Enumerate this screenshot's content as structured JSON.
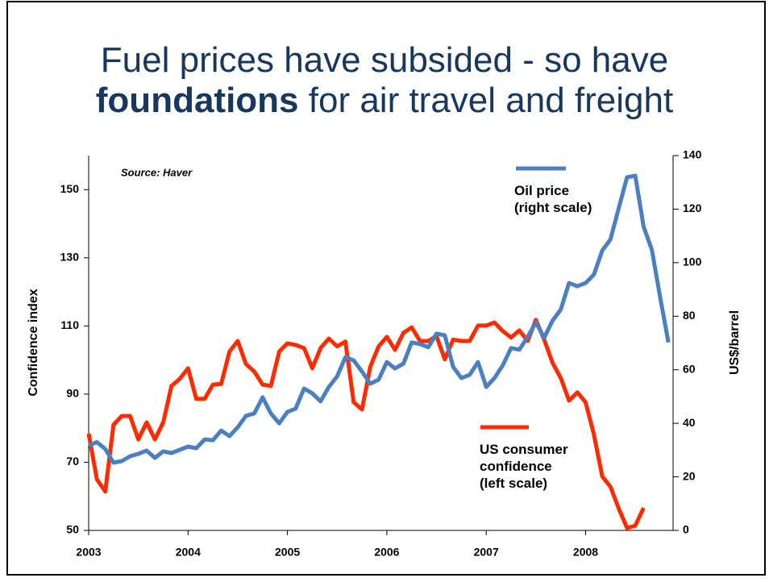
{
  "chart_data": {
    "type": "line",
    "title": {
      "line1": "Fuel prices have subsided - so have",
      "bold": "foundations",
      "rest": "for air travel and freight"
    },
    "source": "Source: Haver",
    "ylabel": "Confidence index",
    "y2label": "US$/barrel",
    "xlim": [
      2003,
      2008.88
    ],
    "xticks": [
      2003,
      2004,
      2005,
      2006,
      2007,
      2008
    ],
    "ylim": [
      50,
      160
    ],
    "yticks": [
      50,
      70,
      90,
      110,
      130,
      150
    ],
    "y2lim": [
      0,
      140
    ],
    "y2ticks": [
      0,
      20,
      40,
      60,
      80,
      100,
      120,
      140
    ],
    "x": [
      2003,
      2003.083,
      2003.167,
      2003.25,
      2003.333,
      2003.417,
      2003.5,
      2003.583,
      2003.667,
      2003.75,
      2003.833,
      2003.917,
      2004,
      2004.083,
      2004.167,
      2004.25,
      2004.333,
      2004.417,
      2004.5,
      2004.583,
      2004.667,
      2004.75,
      2004.833,
      2004.917,
      2005,
      2005.083,
      2005.167,
      2005.25,
      2005.333,
      2005.417,
      2005.5,
      2005.583,
      2005.667,
      2005.75,
      2005.833,
      2005.917,
      2006,
      2006.083,
      2006.167,
      2006.25,
      2006.333,
      2006.417,
      2006.5,
      2006.583,
      2006.667,
      2006.75,
      2006.833,
      2006.917,
      2007,
      2007.083,
      2007.167,
      2007.25,
      2007.333,
      2007.417,
      2007.5,
      2007.583,
      2007.667,
      2007.75,
      2007.833,
      2007.917,
      2008,
      2008.083,
      2008.167,
      2008.25,
      2008.333,
      2008.417,
      2008.5,
      2008.583,
      2008.667,
      2008.75,
      2008.833
    ],
    "series": [
      {
        "name": "US consumer confidence",
        "note": "(left scale)",
        "color": "#ff2a00",
        "axis": "y",
        "values": [
          78.4,
          65,
          61.4,
          81,
          83.6,
          83.6,
          76.7,
          81.7,
          76.7,
          81.7,
          92.4,
          94.5,
          97.6,
          88.6,
          88.6,
          92.8,
          93,
          102.5,
          105.6,
          98.8,
          96.6,
          92.8,
          92.4,
          102.5,
          104.9,
          104.4,
          103.5,
          97.6,
          103.5,
          106.3,
          104,
          105.4,
          87.6,
          85.5,
          98,
          104,
          106.8,
          103,
          108,
          109.6,
          105.6,
          105.6,
          107,
          100.2,
          106,
          105.6,
          105.6,
          110.1,
          110.1,
          111,
          108.5,
          106.6,
          108.7,
          105.6,
          111.8,
          106,
          99.2,
          94.7,
          88.1,
          90.5,
          87.6,
          78.2,
          65.9,
          62.8,
          56.4,
          50.7,
          51.4,
          56.6,
          null,
          null,
          null
        ]
      },
      {
        "name": "Oil price",
        "note": "(right scale)",
        "color": "#4a7fc1",
        "axis": "y2",
        "values": [
          31.6,
          33,
          30.4,
          25.3,
          25.9,
          27.7,
          28.6,
          29.8,
          27.1,
          29.5,
          28.9,
          30.1,
          31.3,
          30.7,
          34,
          33.7,
          37.3,
          35.2,
          38.5,
          42.8,
          43.7,
          49.7,
          43.7,
          40,
          44.3,
          45.5,
          53,
          51.2,
          48.2,
          53.6,
          57.5,
          64.7,
          63.5,
          59.3,
          54.8,
          56.3,
          62.9,
          60.5,
          62.3,
          70.2,
          69.6,
          68.4,
          73.5,
          72.9,
          61.1,
          56.9,
          58.1,
          62.9,
          53.6,
          56.9,
          61.7,
          68.1,
          67.5,
          72.3,
          77.7,
          72,
          78.3,
          82.5,
          92.4,
          91.2,
          92.4,
          95.5,
          104.5,
          108.7,
          120.4,
          131.9,
          132.5,
          113.5,
          104.8,
          87,
          70.2
        ]
      }
    ]
  }
}
